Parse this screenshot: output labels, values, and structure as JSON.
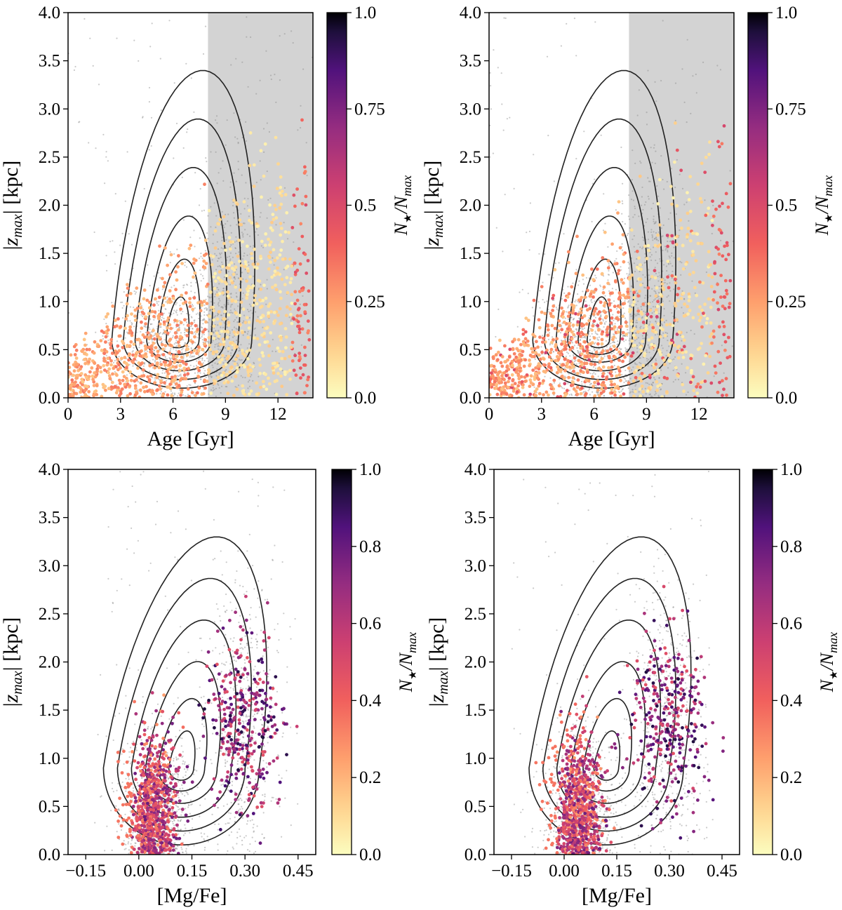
{
  "figure": {
    "layout": "2x2 panel grid",
    "background": "#ffffff"
  },
  "chart_data": [
    {
      "id": "panel-top-left",
      "type": "scatter",
      "xlabel": "Age [Gyr]",
      "ylabel": "|z_max| [kpc]",
      "ylabel_parts": {
        "bar": "|",
        "z": "z",
        "sub": "max",
        "unit": " [kpc]"
      },
      "xlim": [
        0,
        14
      ],
      "ylim": [
        0,
        4
      ],
      "xticks": [
        0,
        3,
        6,
        9,
        12
      ],
      "xtick_labels": [
        "0",
        "3",
        "6",
        "9",
        "12"
      ],
      "yticks": [
        0,
        0.5,
        1,
        1.5,
        2,
        2.5,
        3,
        3.5,
        4
      ],
      "ytick_labels": [
        "0.0",
        "0.5",
        "1.0",
        "1.5",
        "2.0",
        "2.5",
        "3.0",
        "3.5",
        "4.0"
      ],
      "shaded_region": {
        "x": [
          8,
          14
        ],
        "color": "#d3d3d3"
      },
      "contour_center": [
        6.5,
        0.6
      ],
      "colorbar": {
        "label": "N★/N_max",
        "label_parts": {
          "n": "N",
          "star": "★",
          "slash": "/N",
          "sub": "max"
        },
        "range": [
          0,
          1
        ],
        "ticks": [
          0,
          0.25,
          0.5,
          0.75,
          1.0
        ],
        "tick_labels": [
          "0.0",
          "0.25",
          "0.5",
          "0.75",
          "1.0"
        ],
        "colormap": "magma_r"
      },
      "background_points": "grey field population",
      "colored_points": "young-to-old sequence colored by N★/N_max (mostly 0.05-0.4)"
    },
    {
      "id": "panel-top-right",
      "type": "scatter",
      "xlabel": "Age [Gyr]",
      "ylabel": "|z_max| [kpc]",
      "ylabel_parts": {
        "bar": "|",
        "z": "z",
        "sub": "max",
        "unit": " [kpc]"
      },
      "xlim": [
        0,
        14
      ],
      "ylim": [
        0,
        4
      ],
      "xticks": [
        0,
        3,
        6,
        9,
        12
      ],
      "xtick_labels": [
        "0",
        "3",
        "6",
        "9",
        "12"
      ],
      "yticks": [
        0,
        0.5,
        1,
        1.5,
        2,
        2.5,
        3,
        3.5,
        4
      ],
      "ytick_labels": [
        "0.0",
        "0.5",
        "1.0",
        "1.5",
        "2.0",
        "2.5",
        "3.0",
        "3.5",
        "4.0"
      ],
      "shaded_region": {
        "x": [
          8,
          14
        ],
        "color": "#d3d3d3"
      },
      "contour_center": [
        6.5,
        0.6
      ],
      "colorbar": {
        "label": "N★/N_max",
        "label_parts": {
          "n": "N",
          "star": "★",
          "slash": "/N",
          "sub": "max"
        },
        "range": [
          0,
          1
        ],
        "ticks": [
          0,
          0.25,
          0.5,
          0.75,
          1.0
        ],
        "tick_labels": [
          "0.0",
          "0.25",
          "0.5",
          "0.75",
          "1.0"
        ],
        "colormap": "magma_r"
      },
      "background_points": "grey field population",
      "colored_points": "young-to-old sequence colored by N★/N_max (mostly 0.05-0.4)"
    },
    {
      "id": "panel-bottom-left",
      "type": "scatter",
      "xlabel": "[Mg/Fe]",
      "ylabel": "|z_max| [kpc]",
      "ylabel_parts": {
        "bar": "|",
        "z": "z",
        "sub": "max",
        "unit": " [kpc]"
      },
      "xlim": [
        -0.2,
        0.5
      ],
      "ylim": [
        0,
        4
      ],
      "xticks": [
        -0.15,
        0.0,
        0.15,
        0.3,
        0.45
      ],
      "xtick_labels": [
        "−0.15",
        "0.00",
        "0.15",
        "0.30",
        "0.45"
      ],
      "yticks": [
        0,
        0.5,
        1,
        1.5,
        2,
        2.5,
        3,
        3.5,
        4
      ],
      "ytick_labels": [
        "0.0",
        "0.5",
        "1.0",
        "1.5",
        "2.0",
        "2.5",
        "3.0",
        "3.5",
        "4.0"
      ],
      "colorbar": {
        "label": "N★/N_max",
        "label_parts": {
          "n": "N",
          "star": "★",
          "slash": "/N",
          "sub": "max"
        },
        "range": [
          0,
          1
        ],
        "ticks": [
          0,
          0.2,
          0.4,
          0.6,
          0.8,
          1.0
        ],
        "tick_labels": [
          "0.0",
          "0.2",
          "0.4",
          "0.6",
          "0.8",
          "1.0"
        ],
        "colormap": "magma_r"
      },
      "background_points": "grey field population",
      "colored_points": "low-alpha and high-alpha sequences colored by N★/N_max"
    },
    {
      "id": "panel-bottom-right",
      "type": "scatter",
      "xlabel": "[Mg/Fe]",
      "ylabel": "|z_max| [kpc]",
      "ylabel_parts": {
        "bar": "|",
        "z": "z",
        "sub": "max",
        "unit": " [kpc]"
      },
      "xlim": [
        -0.2,
        0.5
      ],
      "ylim": [
        0,
        4
      ],
      "xticks": [
        -0.15,
        0.0,
        0.15,
        0.3,
        0.45
      ],
      "xtick_labels": [
        "−0.15",
        "0.00",
        "0.15",
        "0.30",
        "0.45"
      ],
      "yticks": [
        0,
        0.5,
        1,
        1.5,
        2,
        2.5,
        3,
        3.5,
        4
      ],
      "ytick_labels": [
        "0.0",
        "0.5",
        "1.0",
        "1.5",
        "2.0",
        "2.5",
        "3.0",
        "3.5",
        "4.0"
      ],
      "colorbar": {
        "label": "N★/N_max",
        "label_parts": {
          "n": "N",
          "star": "★",
          "slash": "/N",
          "sub": "max"
        },
        "range": [
          0,
          1
        ],
        "ticks": [
          0,
          0.2,
          0.4,
          0.6,
          0.8,
          1.0
        ],
        "tick_labels": [
          "0.0",
          "0.2",
          "0.4",
          "0.6",
          "0.8",
          "1.0"
        ],
        "colormap": "magma_r"
      },
      "background_points": "grey field population",
      "colored_points": "low-alpha and high-alpha sequences colored by N★/N_max"
    }
  ]
}
